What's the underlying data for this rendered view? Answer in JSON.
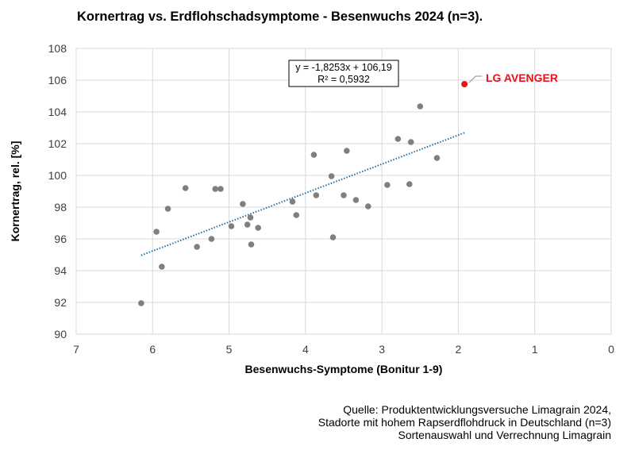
{
  "chart_data": {
    "type": "scatter",
    "title": "Kornertrag vs. Erdflohschadsymptome - Besenwuchs 2024 (n=3).",
    "xlabel": "Besenwuchs-Symptome (Bonitur 1-9)",
    "ylabel": "Kornertrag, rel. [%]",
    "x_reversed": true,
    "xlim": [
      0,
      7
    ],
    "ylim": [
      90,
      108
    ],
    "xticks": [
      7,
      6,
      5,
      4,
      3,
      2,
      1,
      0
    ],
    "yticks": [
      90,
      92,
      94,
      96,
      98,
      100,
      102,
      104,
      106,
      108
    ],
    "grid": true,
    "colors": {
      "points": "#7f7f7f",
      "highlight": "#e8141c",
      "trendline": "#1f6faa",
      "grid": "#d9d9d9"
    },
    "points": [
      {
        "x": 6.15,
        "y": 91.95
      },
      {
        "x": 5.95,
        "y": 96.45
      },
      {
        "x": 5.88,
        "y": 94.25
      },
      {
        "x": 5.8,
        "y": 97.9
      },
      {
        "x": 5.57,
        "y": 99.2
      },
      {
        "x": 5.42,
        "y": 95.5
      },
      {
        "x": 5.23,
        "y": 96.0
      },
      {
        "x": 5.18,
        "y": 99.15
      },
      {
        "x": 5.11,
        "y": 99.15
      },
      {
        "x": 4.97,
        "y": 96.8
      },
      {
        "x": 4.82,
        "y": 98.2
      },
      {
        "x": 4.76,
        "y": 96.9
      },
      {
        "x": 4.72,
        "y": 97.35
      },
      {
        "x": 4.71,
        "y": 95.65
      },
      {
        "x": 4.62,
        "y": 96.7
      },
      {
        "x": 4.17,
        "y": 98.35
      },
      {
        "x": 4.12,
        "y": 97.5
      },
      {
        "x": 3.89,
        "y": 101.3
      },
      {
        "x": 3.86,
        "y": 98.75
      },
      {
        "x": 3.66,
        "y": 99.95
      },
      {
        "x": 3.64,
        "y": 96.1
      },
      {
        "x": 3.5,
        "y": 98.75
      },
      {
        "x": 3.46,
        "y": 101.55
      },
      {
        "x": 3.34,
        "y": 98.45
      },
      {
        "x": 3.18,
        "y": 98.05
      },
      {
        "x": 2.93,
        "y": 99.4
      },
      {
        "x": 2.79,
        "y": 102.3
      },
      {
        "x": 2.64,
        "y": 99.45
      },
      {
        "x": 2.62,
        "y": 102.1
      },
      {
        "x": 2.5,
        "y": 104.35
      },
      {
        "x": 2.28,
        "y": 101.1
      }
    ],
    "highlight_point": {
      "x": 1.92,
      "y": 105.75,
      "label": "LG AVENGER"
    },
    "trendline": {
      "slope": -1.8253,
      "intercept": 106.19,
      "x_from": 6.15,
      "x_to": 1.92
    },
    "equation": "y = -1,8253x + 106,19",
    "r_squared": "R² = 0,5932"
  },
  "source": {
    "line1": "Quelle: Produktentwicklungsversuche Limagrain 2024,",
    "line2": "Stadorte mit hohem Rapserdflohdruck in Deutschland (n=3)",
    "line3": "Sortenauswahl und Verrechnung Limagrain"
  }
}
